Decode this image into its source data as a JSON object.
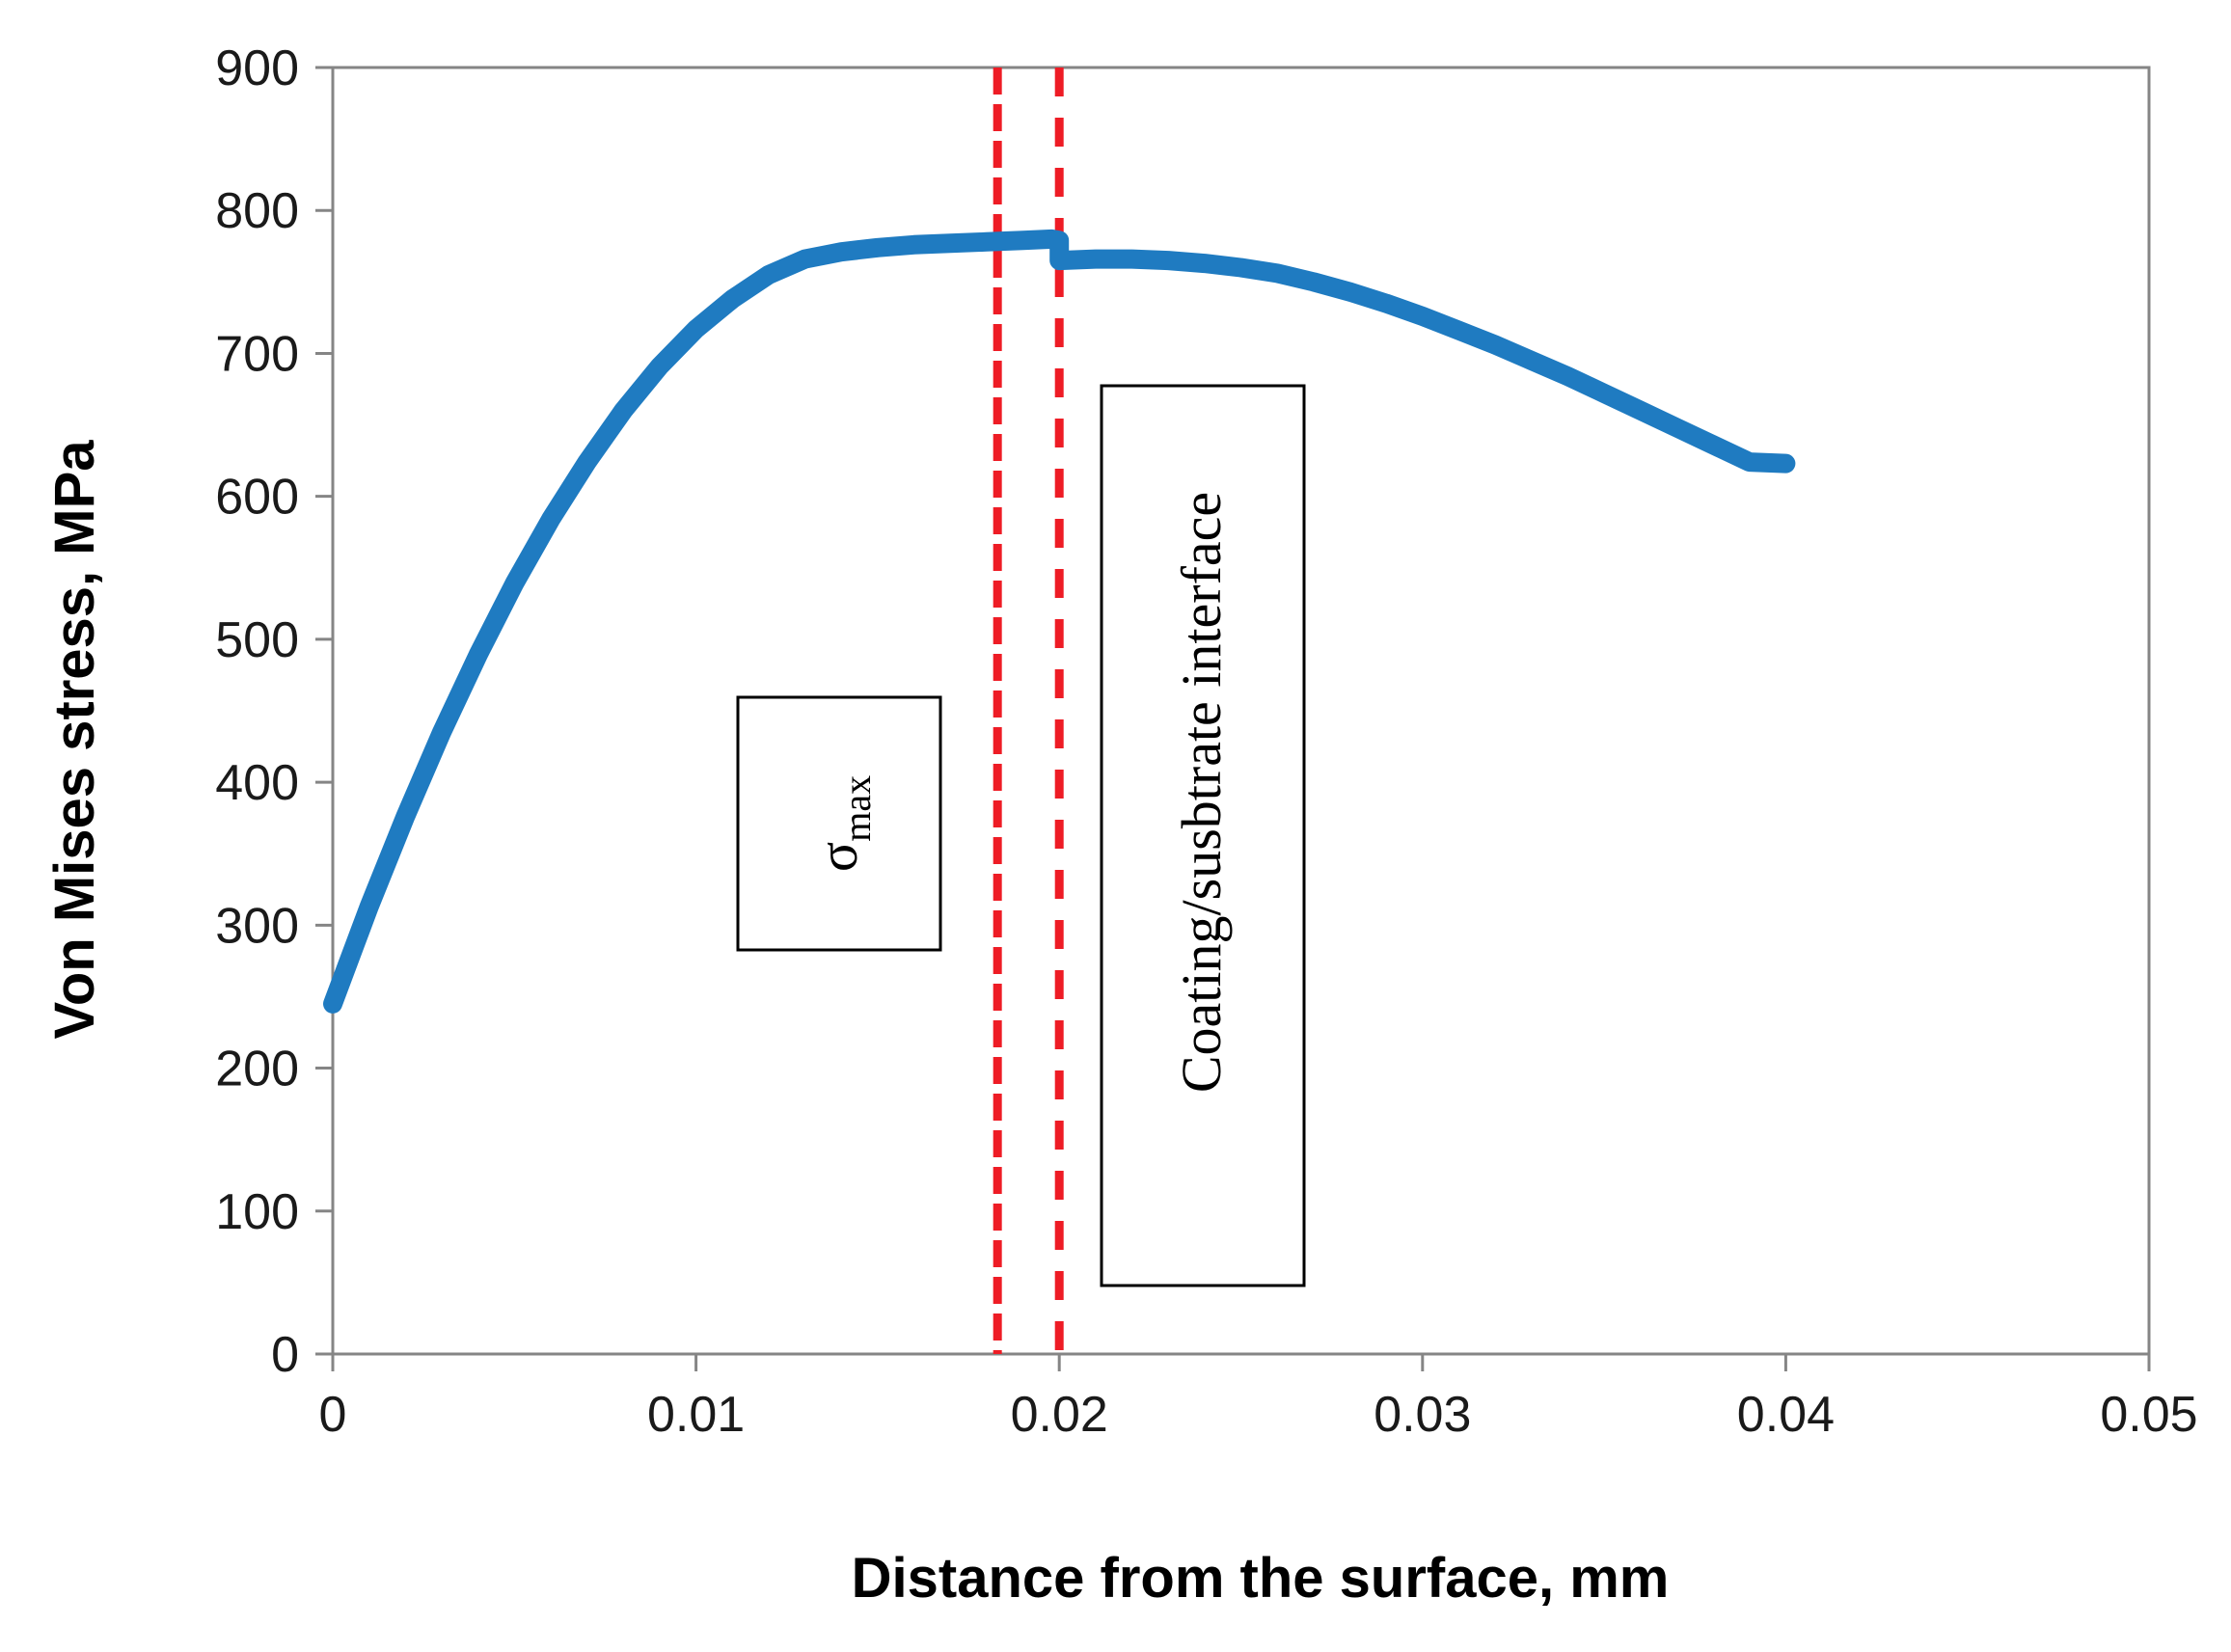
{
  "chart_data": {
    "type": "line",
    "title": "",
    "xlabel": "Distance from the surface,   mm",
    "ylabel": "Von Mises stress,   MPa",
    "xlim": [
      0,
      0.05
    ],
    "ylim": [
      0,
      900
    ],
    "grid": false,
    "x_ticks": [
      "0",
      "0.01",
      "0.02",
      "0.03",
      "0.04",
      "0.05"
    ],
    "y_ticks": [
      "0",
      "100",
      "200",
      "300",
      "400",
      "500",
      "600",
      "700",
      "800",
      "900"
    ],
    "series": [
      {
        "x": [
          0,
          0.001,
          0.002,
          0.003,
          0.004,
          0.005,
          0.006,
          0.007,
          0.008,
          0.009,
          0.01,
          0.011,
          0.012,
          0.013,
          0.014,
          0.015,
          0.016,
          0.017,
          0.018,
          0.019,
          0.0198,
          0.02,
          0.02,
          0.021,
          0.022,
          0.023,
          0.024,
          0.025,
          0.026,
          0.027,
          0.028,
          0.029,
          0.03,
          0.031,
          0.032,
          0.033,
          0.034,
          0.035,
          0.036,
          0.037,
          0.038,
          0.039,
          0.04
        ],
        "y": [
          245,
          313,
          376,
          435,
          489,
          539,
          584,
          624,
          660,
          691,
          717,
          738,
          755,
          766,
          771,
          774,
          776,
          777,
          778,
          779,
          780,
          779,
          765,
          766,
          766,
          765,
          763,
          760,
          756,
          750,
          743,
          735,
          726,
          716,
          706,
          695,
          684,
          672,
          660,
          648,
          636,
          624,
          623
        ]
      }
    ],
    "vertical_lines": [
      {
        "x": 0.0183,
        "style": "dashed",
        "color": "#ee1c25"
      },
      {
        "x": 0.02,
        "style": "dashed",
        "color": "#ee1c25"
      }
    ],
    "annotations": [
      {
        "text": "σ",
        "subscript": "max",
        "anchor_x": 0.014
      },
      {
        "text": "Coating/susbtrate  interface",
        "anchor_x": 0.024
      }
    ],
    "colors": {
      "series": "#1f7bc1",
      "reference_lines": "#ee1c25",
      "frame": "#858585"
    }
  }
}
